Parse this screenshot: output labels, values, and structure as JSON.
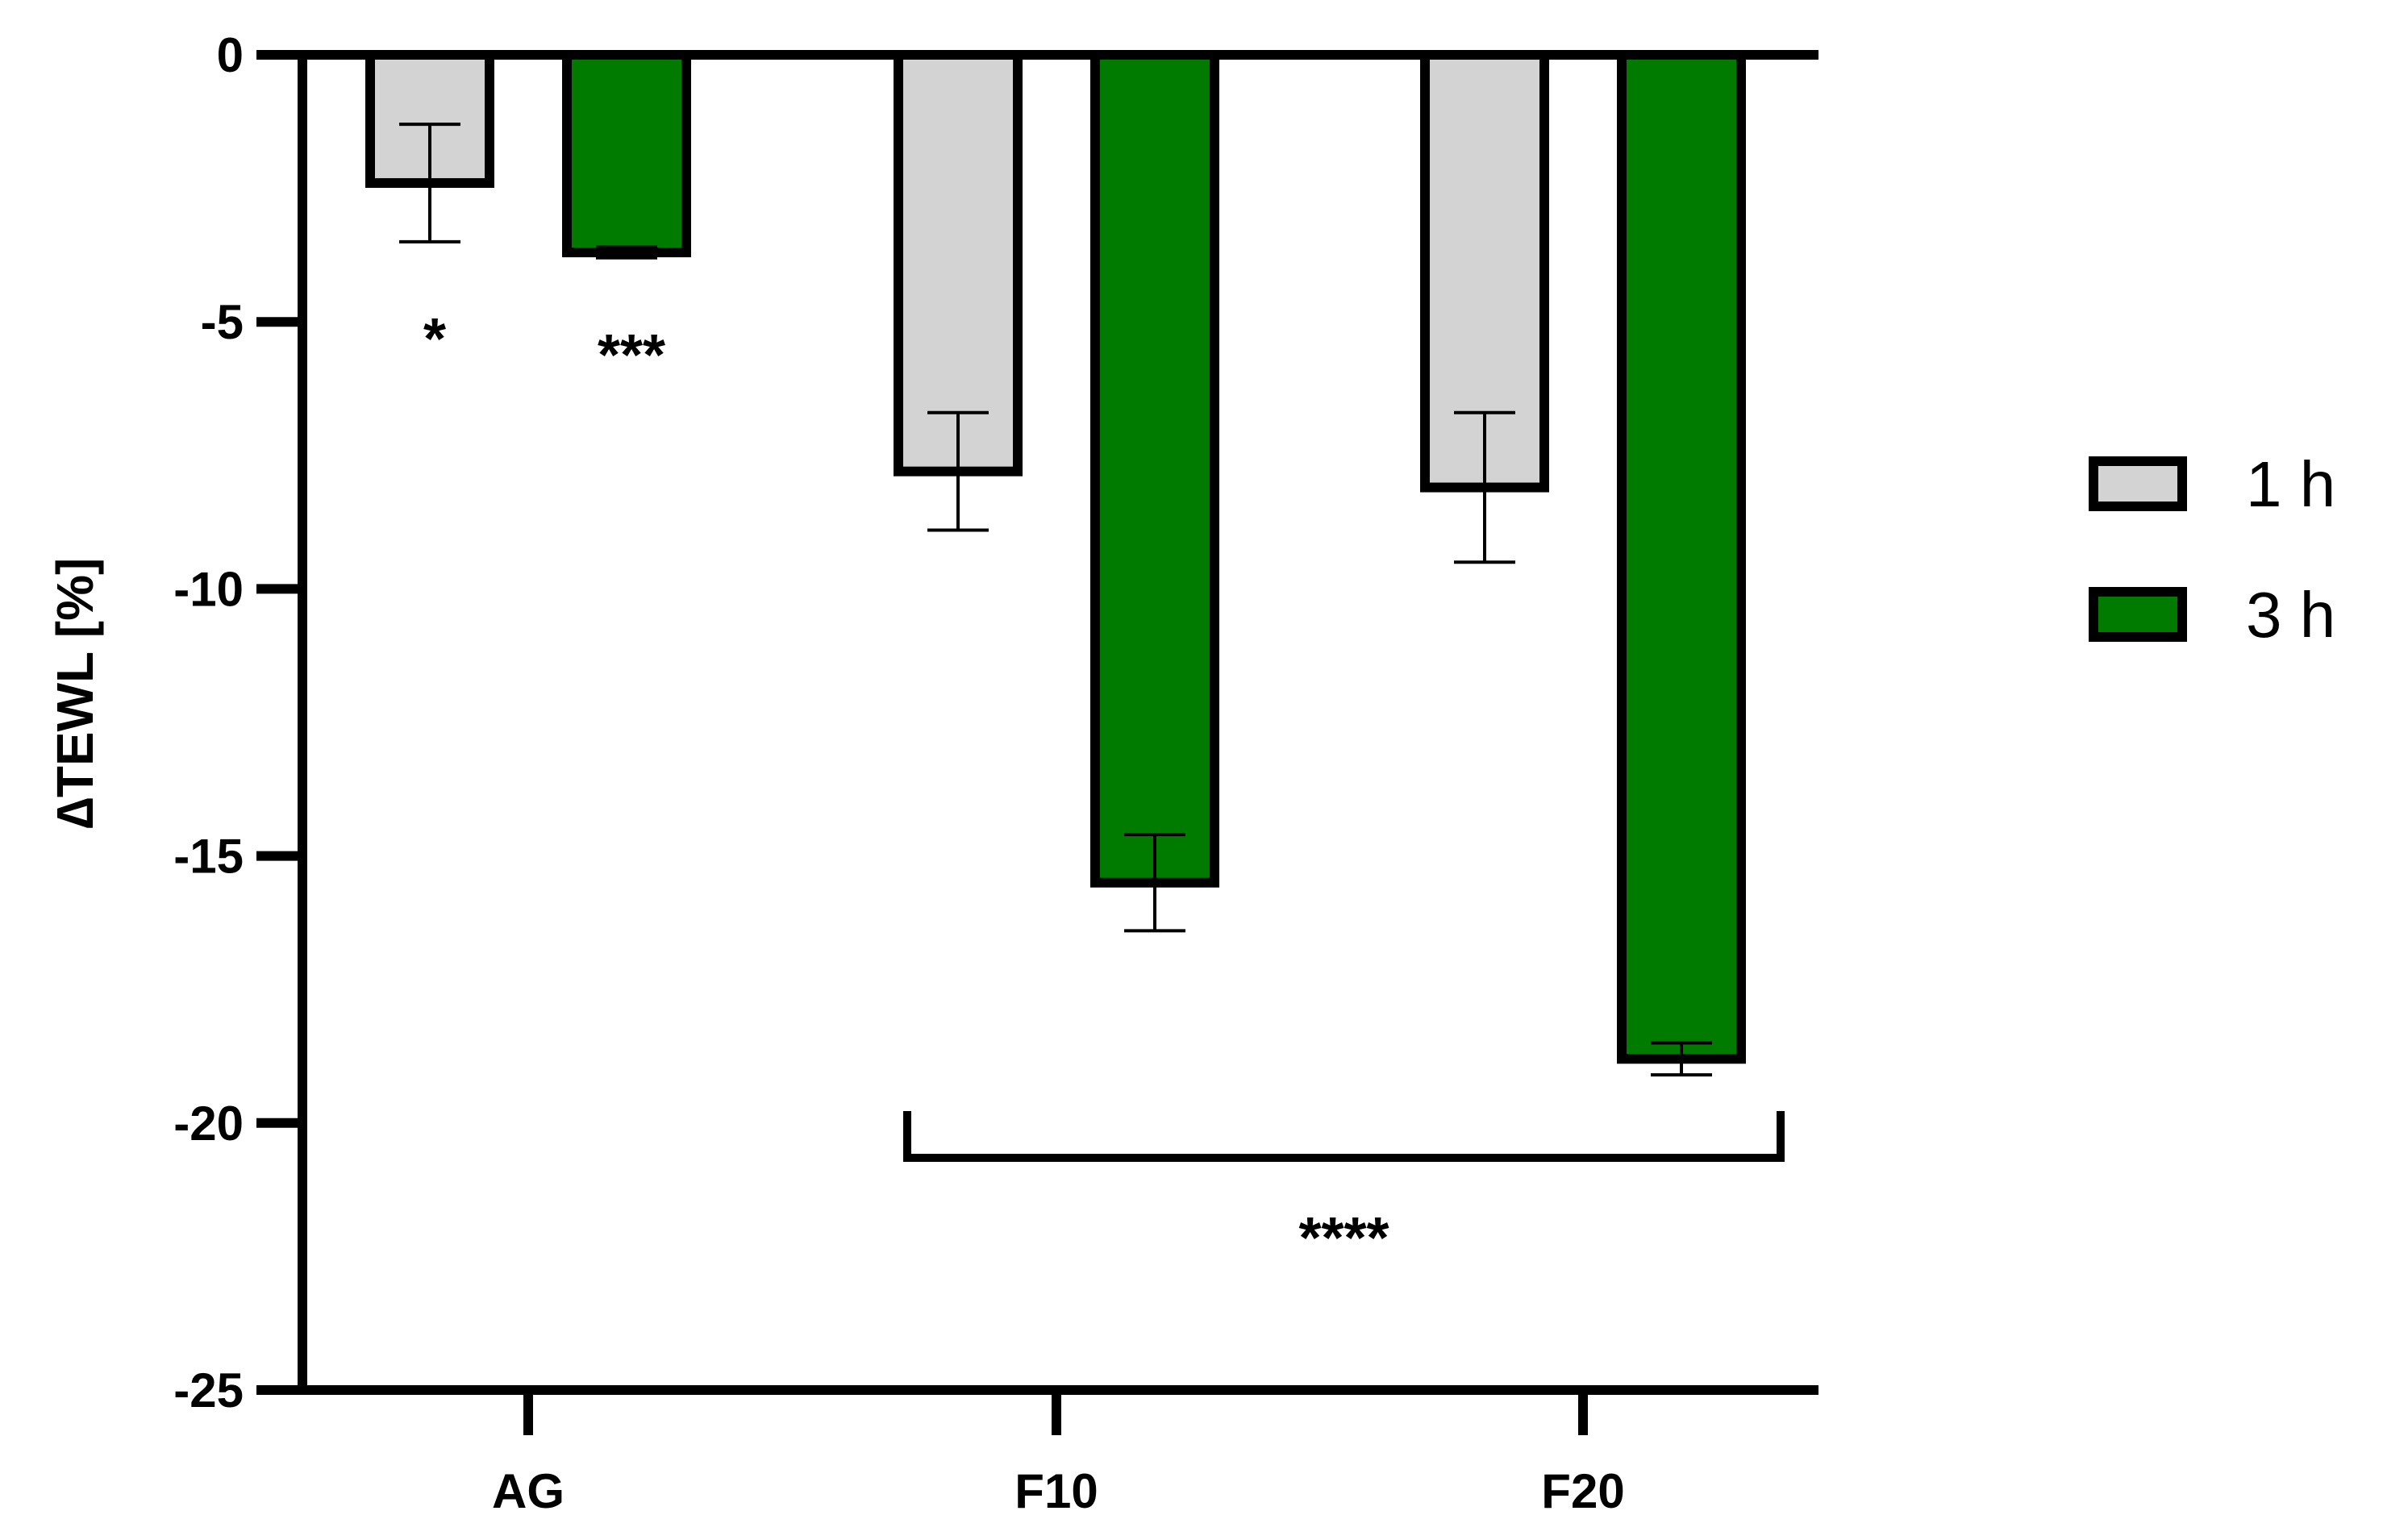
{
  "chart_data": {
    "type": "bar",
    "title": "",
    "xlabel": "",
    "ylabel": "∆TEWL [%]",
    "ylim": [
      -25,
      0
    ],
    "yticks": [
      0,
      -5,
      -10,
      -15,
      -20,
      -25
    ],
    "ytick_labels": [
      "0",
      "-5",
      "-10",
      "-15",
      "-20",
      "-25"
    ],
    "categories": [
      "AG",
      "F10",
      "F20"
    ],
    "series": [
      {
        "name": "1 h",
        "color": "#d3d3d3",
        "values": [
          -2.4,
          -7.8,
          -8.1
        ],
        "errors": [
          1.1,
          1.1,
          1.4
        ]
      },
      {
        "name": "3 h",
        "color": "#007b00",
        "values": [
          -3.7,
          -15.5,
          -18.8
        ],
        "errors": [
          0.1,
          0.9,
          0.3
        ]
      }
    ],
    "annotations": [
      {
        "text": "*",
        "category": "AG",
        "series": "1 h"
      },
      {
        "text": "***",
        "category": "AG",
        "series": "3 h"
      },
      {
        "text": "****",
        "bracket_from": "F10",
        "bracket_to": "F20"
      }
    ],
    "legend": {
      "placement": "right"
    },
    "grid": false
  }
}
